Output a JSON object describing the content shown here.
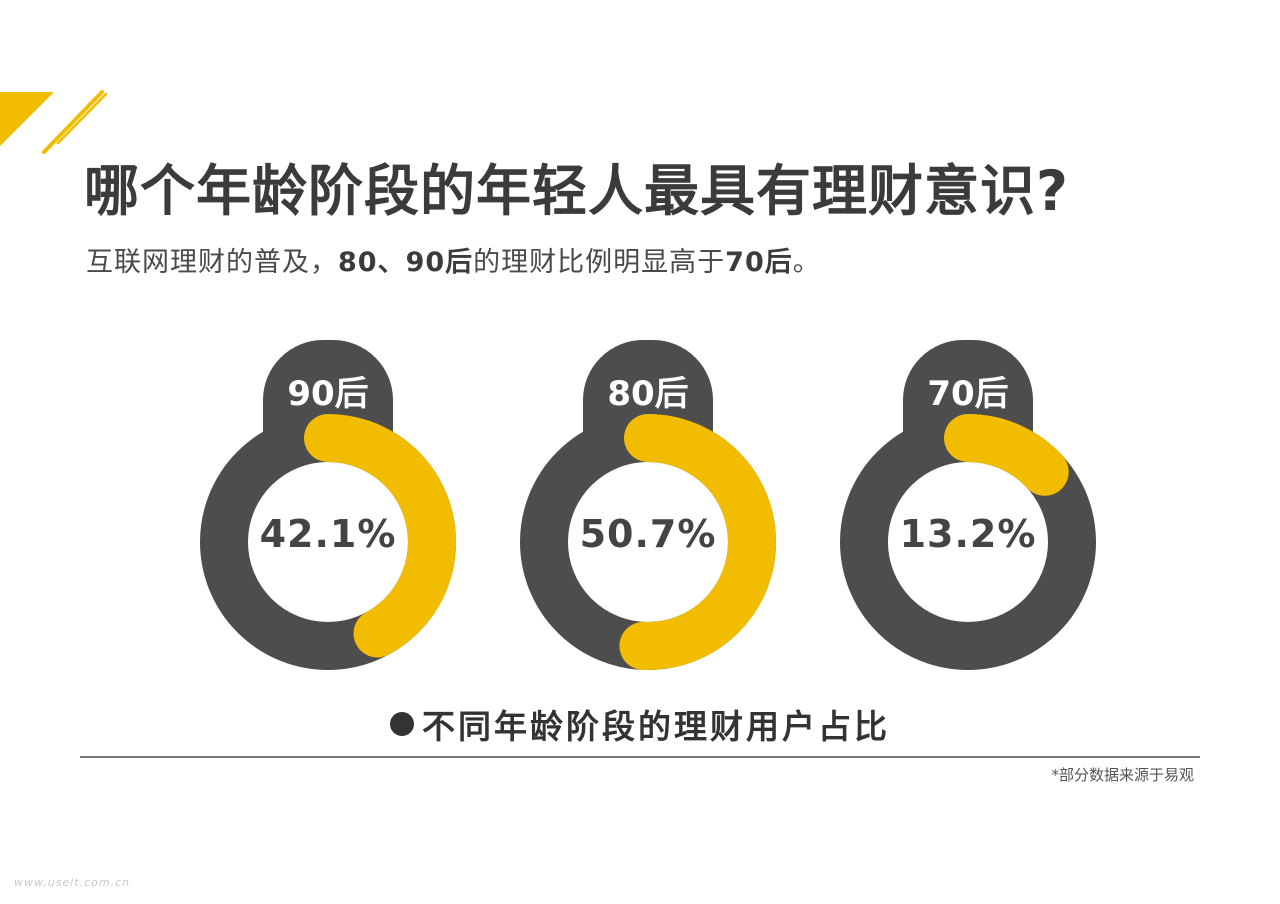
{
  "colors": {
    "accent": "#f2bd00",
    "ring": "#4d4d4d",
    "text": "#3b3b3b"
  },
  "header": {
    "title": "哪个年龄阶段的年轻人最具有理财意识?",
    "subtitle_part1": "互联网理财的普及，",
    "subtitle_bold1": "80、90后",
    "subtitle_part2": "的理财比例明显高于",
    "subtitle_bold2": "70后",
    "subtitle_part3": "。"
  },
  "chart_data": {
    "type": "pie",
    "title": "不同年龄阶段的理财用户占比",
    "categories": [
      "90后",
      "80后",
      "70后"
    ],
    "values": [
      42.1,
      50.7,
      13.2
    ],
    "value_labels": [
      "42.1%",
      "50.7%",
      "13.2%"
    ],
    "unit": "%"
  },
  "footer": {
    "source": "*部分数据来源于易观",
    "watermark": "www.useit.com.cn"
  }
}
